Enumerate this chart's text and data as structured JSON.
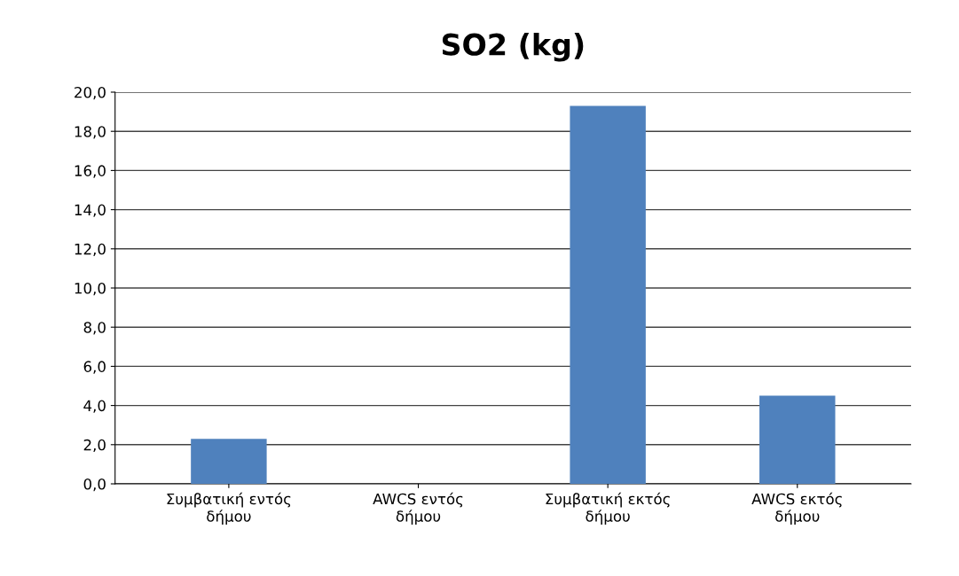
{
  "chart_data": {
    "type": "bar",
    "title": "SO2 (kg)",
    "categories": [
      "Συμβατική εντός\nδήμου",
      "AWCS εντός\nδήμου",
      "Συμβατική εκτός\nδήμου",
      "AWCS εκτός\nδήμου"
    ],
    "values": [
      2.3,
      0.0,
      19.3,
      4.5
    ],
    "color": "#4f81bd",
    "ylim": [
      0,
      20
    ],
    "yticks": [
      {
        "value": 0,
        "label": "0,0"
      },
      {
        "value": 2,
        "label": "2,0"
      },
      {
        "value": 4,
        "label": "4,0"
      },
      {
        "value": 6,
        "label": "6,0"
      },
      {
        "value": 8,
        "label": "8,0"
      },
      {
        "value": 10,
        "label": "10,0"
      },
      {
        "value": 12,
        "label": "12,0"
      },
      {
        "value": 14,
        "label": "14,0"
      },
      {
        "value": 16,
        "label": "16,0"
      },
      {
        "value": 18,
        "label": "18,0"
      },
      {
        "value": 20,
        "label": "20,0"
      }
    ],
    "grid": "y",
    "legend": false
  }
}
